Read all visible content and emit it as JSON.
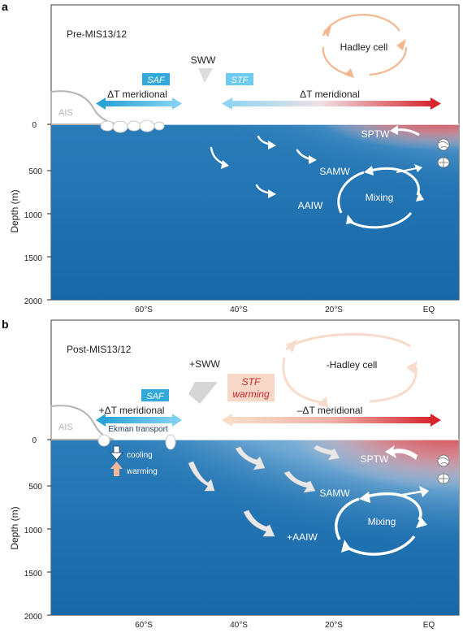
{
  "colors": {
    "ocean_deep": "#1a6fae",
    "ocean_mid": "#5d9fcf",
    "ocean_light": "#d6e6f1",
    "warm_red": "#d8333b",
    "saf_blue": "#33a9d9",
    "stf_blue": "#6ccbee",
    "stf_warming_bg": "#f7d8c6",
    "hadley_orange": "#f3b78f",
    "hadley_faded": "#f8dccb",
    "ais_gray": "#b4b4b4"
  },
  "shared": {
    "y_axis_label": "Depth (m)",
    "depth_ticks": [
      "0",
      "500",
      "1000",
      "1500",
      "2000"
    ],
    "lat_ticks": [
      "60°S",
      "40°S",
      "20°S",
      "EQ"
    ]
  },
  "panel_a": {
    "letter": "a",
    "title": "Pre-MIS13/12",
    "hadley": "Hadley cell",
    "sww": "SWW",
    "saf": "SAF",
    "stf": "STF",
    "dt_left": "ΔT meridional",
    "dt_right": "ΔT meridional",
    "ais": "AIS",
    "sptw": "SPTW",
    "samw": "SAMW",
    "aaiw": "AAIW",
    "mixing": "Mixing"
  },
  "panel_b": {
    "letter": "b",
    "title": "Post-MIS13/12",
    "hadley": "-Hadley cell",
    "sww": "+SWW",
    "saf": "SAF",
    "stf_line1": "STF",
    "stf_line2": "warming",
    "dt_left": "+ΔT meridional",
    "dt_right": "–ΔT meridional",
    "ekman": "Ekman transport",
    "cooling": "cooling",
    "warming": "warming",
    "ais": "AIS",
    "sptw": "SPTW",
    "samw": "SAMW",
    "aaiw": "+AAIW",
    "mixing": "Mixing"
  }
}
